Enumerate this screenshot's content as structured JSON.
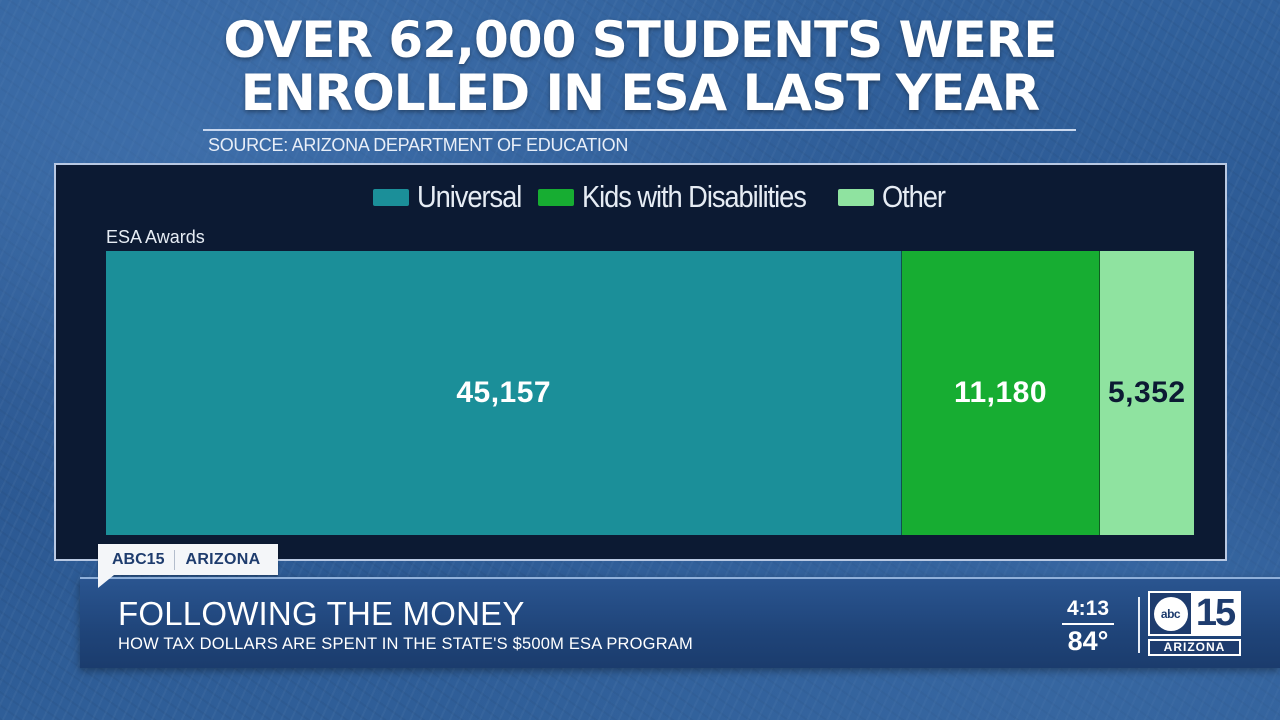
{
  "headline": {
    "line1": "OVER 62,000 STUDENTS WERE",
    "line2": "ENROLLED IN ESA LAST YEAR",
    "source": "SOURCE: ARIZONA DEPARTMENT OF EDUCATION"
  },
  "chart": {
    "ylabel": "ESA Awards",
    "legend": [
      {
        "label": "Universal",
        "color": "#1b8f99"
      },
      {
        "label": "Kids with Disabilities",
        "color": "#17ad32"
      },
      {
        "label": "Other",
        "color": "#8fe3a0"
      }
    ],
    "segments": [
      {
        "label": "45,157",
        "value": 45157,
        "color": "#1b8f99",
        "text_color": "#ffffff"
      },
      {
        "label": "11,180",
        "value": 11180,
        "color": "#17ad32",
        "text_color": "#ffffff"
      },
      {
        "label": "5,352",
        "value": 5352,
        "color": "#8fe3a0",
        "text_color": "#0c1a33"
      }
    ]
  },
  "chart_data": {
    "type": "bar",
    "orientation": "horizontal-stacked",
    "title": "OVER 62,000 STUDENTS WERE ENROLLED IN ESA LAST YEAR",
    "subtitle": "SOURCE: ARIZONA DEPARTMENT OF EDUCATION",
    "categories": [
      "ESA Awards"
    ],
    "series": [
      {
        "name": "Universal",
        "values": [
          45157
        ],
        "color": "#1b8f99"
      },
      {
        "name": "Kids with Disabilities",
        "values": [
          11180
        ],
        "color": "#17ad32"
      },
      {
        "name": "Other",
        "values": [
          5352
        ],
        "color": "#8fe3a0"
      }
    ],
    "xlabel": "",
    "ylabel": "ESA Awards",
    "legend_position": "top",
    "grid": false,
    "data_labels": true
  },
  "lower_third": {
    "tag_brand": "ABC15",
    "tag_region": "ARIZONA",
    "title": "FOLLOWING THE MONEY",
    "subtitle": "HOW TAX DOLLARS ARE SPENT IN THE STATE'S $500M ESA PROGRAM",
    "time": "4:13",
    "temperature": "84°",
    "logo_network": "abc",
    "logo_number": "15",
    "logo_region": "ARIZONA"
  }
}
